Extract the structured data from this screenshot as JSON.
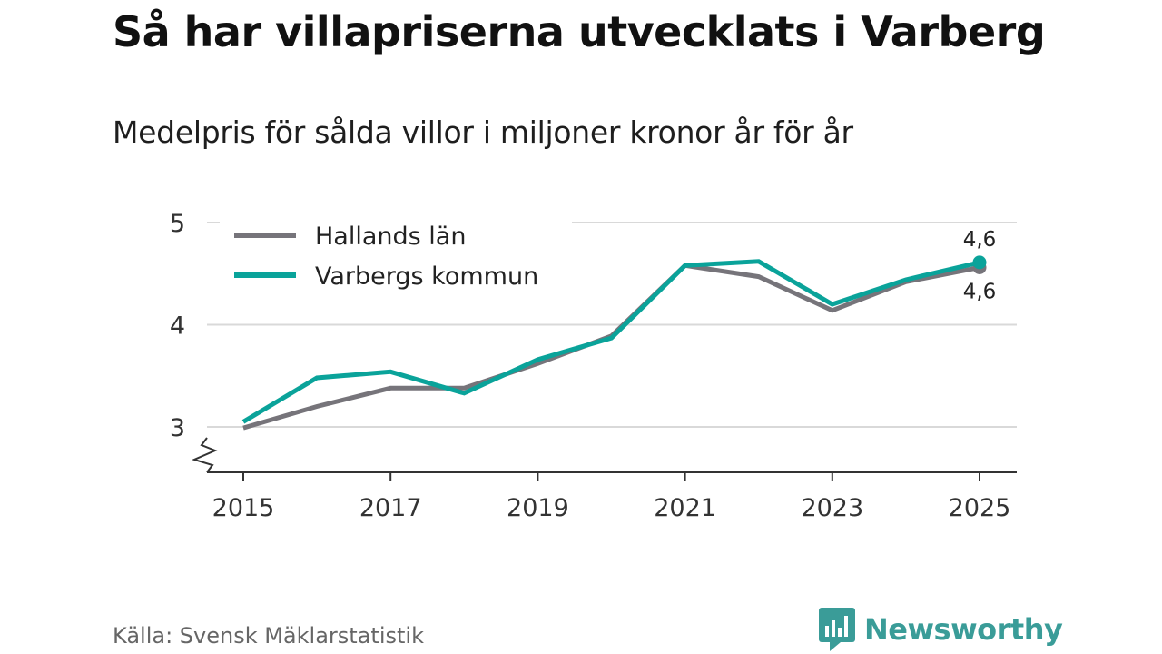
{
  "title": "Så har villapriserna utvecklats i Varberg",
  "subtitle": "Medelpris för sålda villor i miljoner kronor år för år",
  "source": "Källa: Svensk Mäklarstatistik",
  "brand": "Newsworthy",
  "colors": {
    "hallands": "#76747a",
    "varbergs": "#0aa39a",
    "grid": "#d9d9d9",
    "axis": "#333333",
    "brand": "#3a9c98"
  },
  "chart_data": {
    "type": "line",
    "title": "Så har villapriserna utvecklats i Varberg",
    "subtitle": "Medelpris för sålda villor i miljoner kronor år för år",
    "xlabel": "",
    "ylabel": "",
    "x": [
      2015,
      2016,
      2017,
      2018,
      2019,
      2020,
      2021,
      2022,
      2023,
      2024,
      2025
    ],
    "x_ticks": [
      "2015",
      "2017",
      "2019",
      "2021",
      "2023",
      "2025"
    ],
    "y_ticks": [
      "3",
      "4",
      "5"
    ],
    "ylim": [
      2.55,
      5
    ],
    "xlim": [
      2014.5,
      2025.5
    ],
    "grid": true,
    "axis_break": true,
    "legend_position": "top-left",
    "series": [
      {
        "name": "Hallands län",
        "color_key": "hallands",
        "values": [
          2.99,
          3.2,
          3.38,
          3.38,
          3.62,
          3.89,
          4.58,
          4.47,
          4.14,
          4.42,
          4.56
        ],
        "end_label": "4,6"
      },
      {
        "name": "Varbergs kommun",
        "color_key": "varbergs",
        "values": [
          3.05,
          3.48,
          3.54,
          3.33,
          3.66,
          3.87,
          4.58,
          4.62,
          4.2,
          4.44,
          4.61
        ],
        "end_label": "4,6"
      }
    ]
  }
}
